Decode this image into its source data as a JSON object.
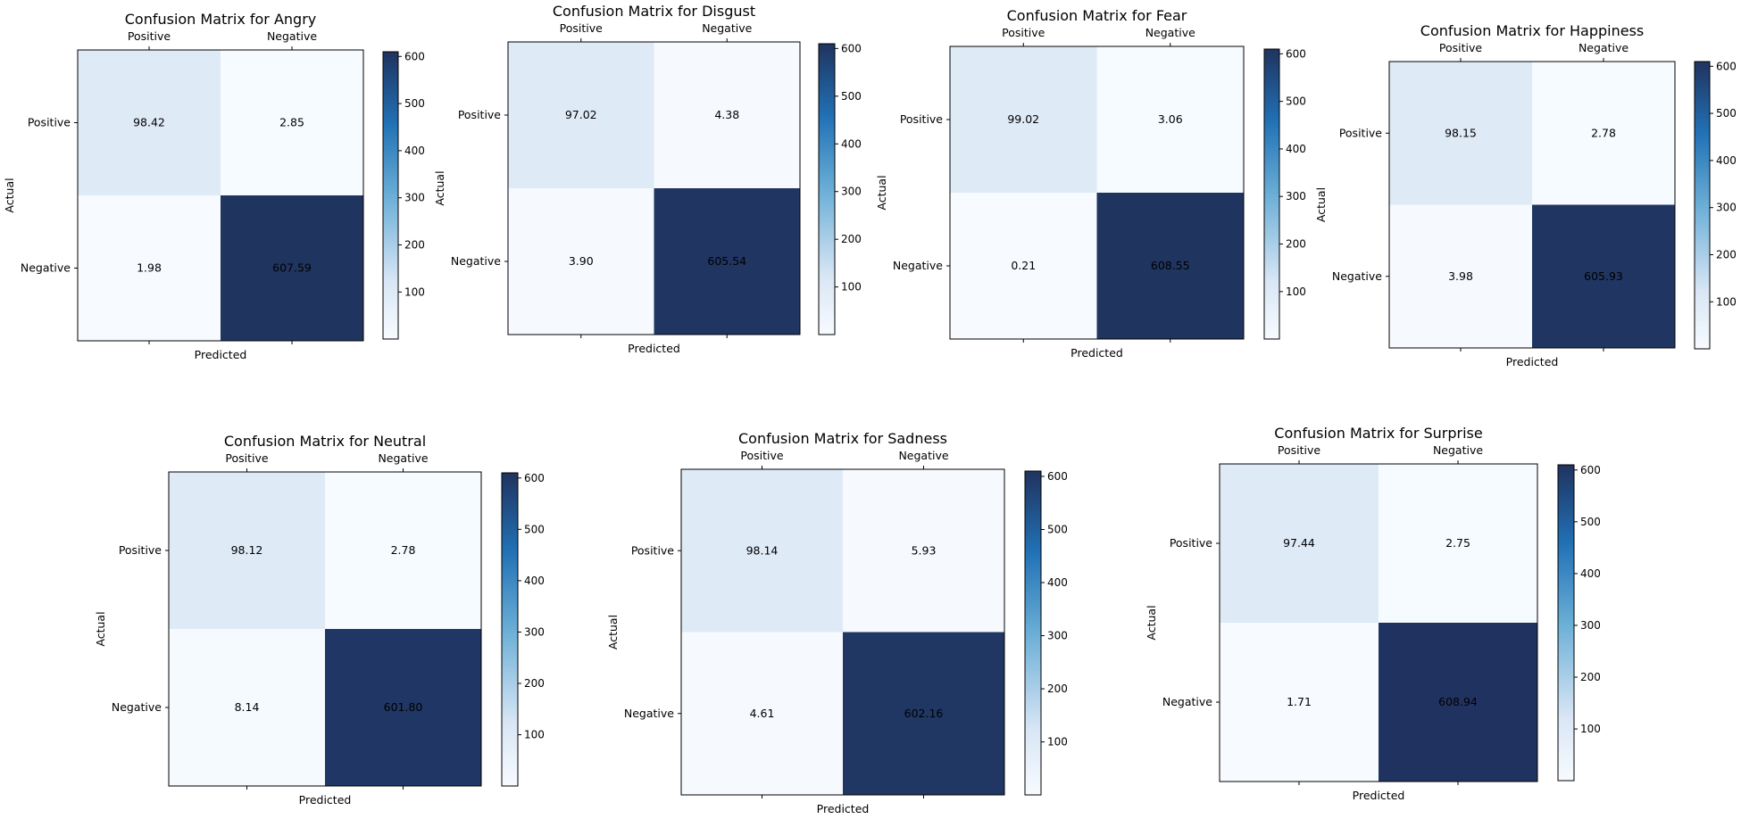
{
  "chart_data": [
    {
      "type": "heatmap",
      "title": "Confusion Matrix for Angry",
      "x_categories": [
        "Positive",
        "Negative"
      ],
      "y_categories": [
        "Positive",
        "Negative"
      ],
      "values": [
        [
          98.42,
          2.85
        ],
        [
          1.98,
          607.59
        ]
      ],
      "value_labels": [
        [
          "98.42",
          "2.85"
        ],
        [
          "1.98",
          "607.59"
        ]
      ],
      "xlabel": "Predicted",
      "ylabel": "Actual",
      "colormap": "Blues",
      "colorbar_ticks": [
        "100",
        "200",
        "300",
        "400",
        "500",
        "600"
      ]
    },
    {
      "type": "heatmap",
      "title": "Confusion Matrix for Disgust",
      "x_categories": [
        "Positive",
        "Negative"
      ],
      "y_categories": [
        "Positive",
        "Negative"
      ],
      "values": [
        [
          97.02,
          4.38
        ],
        [
          3.9,
          605.54
        ]
      ],
      "value_labels": [
        [
          "97.02",
          "4.38"
        ],
        [
          "3.90",
          "605.54"
        ]
      ],
      "xlabel": "Predicted",
      "ylabel": "Actual",
      "colormap": "Blues",
      "colorbar_ticks": [
        "100",
        "200",
        "300",
        "400",
        "500",
        "600"
      ]
    },
    {
      "type": "heatmap",
      "title": "Confusion Matrix for Fear",
      "x_categories": [
        "Positive",
        "Negative"
      ],
      "y_categories": [
        "Positive",
        "Negative"
      ],
      "values": [
        [
          99.02,
          3.06
        ],
        [
          0.21,
          608.55
        ]
      ],
      "value_labels": [
        [
          "99.02",
          "3.06"
        ],
        [
          "0.21",
          "608.55"
        ]
      ],
      "xlabel": "Predicted",
      "ylabel": "Actual",
      "colormap": "Blues",
      "colorbar_ticks": [
        "100",
        "200",
        "300",
        "400",
        "500",
        "600"
      ]
    },
    {
      "type": "heatmap",
      "title": "Confusion Matrix for Happiness",
      "x_categories": [
        "Positive",
        "Negative"
      ],
      "y_categories": [
        "Positive",
        "Negative"
      ],
      "values": [
        [
          98.15,
          2.78
        ],
        [
          3.98,
          605.93
        ]
      ],
      "value_labels": [
        [
          "98.15",
          "2.78"
        ],
        [
          "3.98",
          "605.93"
        ]
      ],
      "xlabel": "Predicted",
      "ylabel": "Actual",
      "colormap": "Blues",
      "colorbar_ticks": [
        "100",
        "200",
        "300",
        "400",
        "500",
        "600"
      ]
    },
    {
      "type": "heatmap",
      "title": "Confusion Matrix for Neutral",
      "x_categories": [
        "Positive",
        "Negative"
      ],
      "y_categories": [
        "Positive",
        "Negative"
      ],
      "values": [
        [
          98.12,
          2.78
        ],
        [
          8.14,
          601.8
        ]
      ],
      "value_labels": [
        [
          "98.12",
          "2.78"
        ],
        [
          "8.14",
          "601.80"
        ]
      ],
      "xlabel": "Predicted",
      "ylabel": "Actual",
      "colormap": "Blues",
      "colorbar_ticks": [
        "100",
        "200",
        "300",
        "400",
        "500",
        "600"
      ]
    },
    {
      "type": "heatmap",
      "title": "Confusion Matrix for Sadness",
      "x_categories": [
        "Positive",
        "Negative"
      ],
      "y_categories": [
        "Positive",
        "Negative"
      ],
      "values": [
        [
          98.14,
          5.93
        ],
        [
          4.61,
          602.16
        ]
      ],
      "value_labels": [
        [
          "98.14",
          "5.93"
        ],
        [
          "4.61",
          "602.16"
        ]
      ],
      "xlabel": "Predicted",
      "ylabel": "Actual",
      "colormap": "Blues",
      "colorbar_ticks": [
        "100",
        "200",
        "300",
        "400",
        "500",
        "600"
      ]
    },
    {
      "type": "heatmap",
      "title": "Confusion Matrix for Surprise",
      "x_categories": [
        "Positive",
        "Negative"
      ],
      "y_categories": [
        "Positive",
        "Negative"
      ],
      "values": [
        [
          97.44,
          2.75
        ],
        [
          1.71,
          608.94
        ]
      ],
      "value_labels": [
        [
          "97.44",
          "2.75"
        ],
        [
          "1.71",
          "608.94"
        ]
      ],
      "xlabel": "Predicted",
      "ylabel": "Actual",
      "colormap": "Blues",
      "colorbar_ticks": [
        "100",
        "200",
        "300",
        "400",
        "500",
        "600"
      ]
    }
  ],
  "colors": {
    "cmap_low": "#f7fbff",
    "cmap_mid_low": "#d9e6f5",
    "cmap_mid": "#6aaed6",
    "cmap_mid_high": "#2171b5",
    "cmap_high": "#20335f",
    "text_dark": "#000000"
  }
}
